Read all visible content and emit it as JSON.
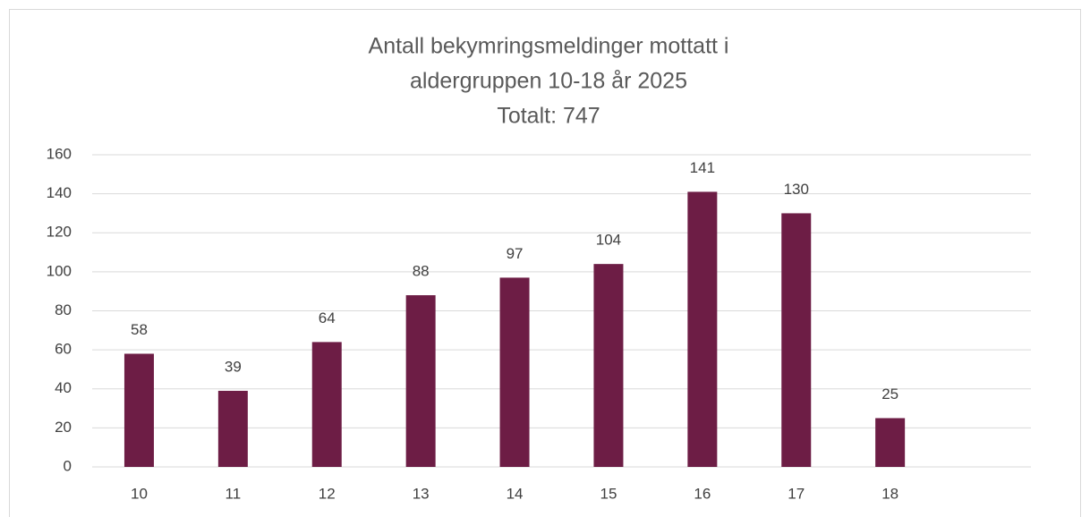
{
  "chart_data": {
    "type": "bar",
    "title": [
      "Antall bekymringsmeldinger mottatt i",
      "aldergruppen 10-18 år 2025",
      "Totalt: 747"
    ],
    "categories": [
      "10",
      "11",
      "12",
      "13",
      "14",
      "15",
      "16",
      "17",
      "18",
      null
    ],
    "values": [
      58,
      39,
      64,
      88,
      97,
      104,
      141,
      130,
      25,
      null
    ],
    "color": "#6d1d45",
    "ylim": [
      0,
      160
    ],
    "yticks": [
      0,
      20,
      40,
      60,
      80,
      100,
      120,
      140,
      160
    ],
    "grid": true
  }
}
